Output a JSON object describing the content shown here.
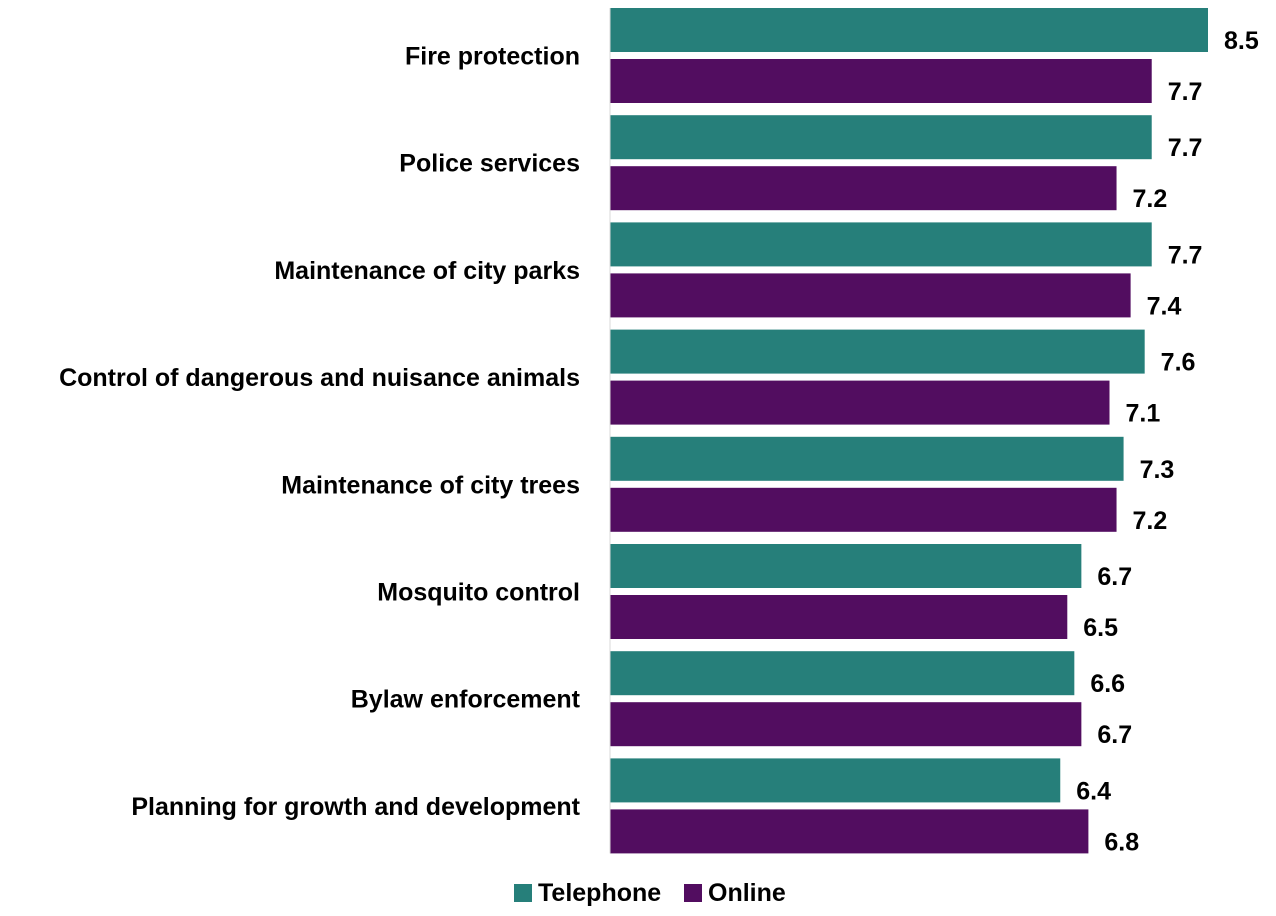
{
  "chart_data": {
    "type": "bar",
    "orientation": "horizontal",
    "title": "",
    "xlabel": "",
    "ylabel": "",
    "categories": [
      "Fire protection",
      "Police services",
      "Maintenance of city parks",
      "Control of dangerous and nuisance animals",
      "Maintenance of city trees",
      "Mosquito control",
      "Bylaw enforcement",
      "Planning for growth and development"
    ],
    "series": [
      {
        "name": "Telephone",
        "color": "#267F7A",
        "values": [
          8.5,
          7.7,
          7.7,
          7.6,
          7.3,
          6.7,
          6.6,
          6.4
        ],
        "labels": [
          "8.5",
          "7.7",
          "7.7",
          "7.6",
          "7.3",
          "6.7",
          "6.6",
          "6.4"
        ]
      },
      {
        "name": "Online",
        "color": "#520D60",
        "values": [
          7.7,
          7.2,
          7.4,
          7.1,
          7.2,
          6.5,
          6.7,
          6.8
        ],
        "labels": [
          "7.7",
          "7.2",
          "7.4",
          "7.1",
          "7.2",
          "6.5",
          "6.7",
          "6.8"
        ]
      }
    ],
    "xlim": [
      0,
      8.5
    ],
    "grid": false,
    "legend_position": "bottom-center"
  }
}
